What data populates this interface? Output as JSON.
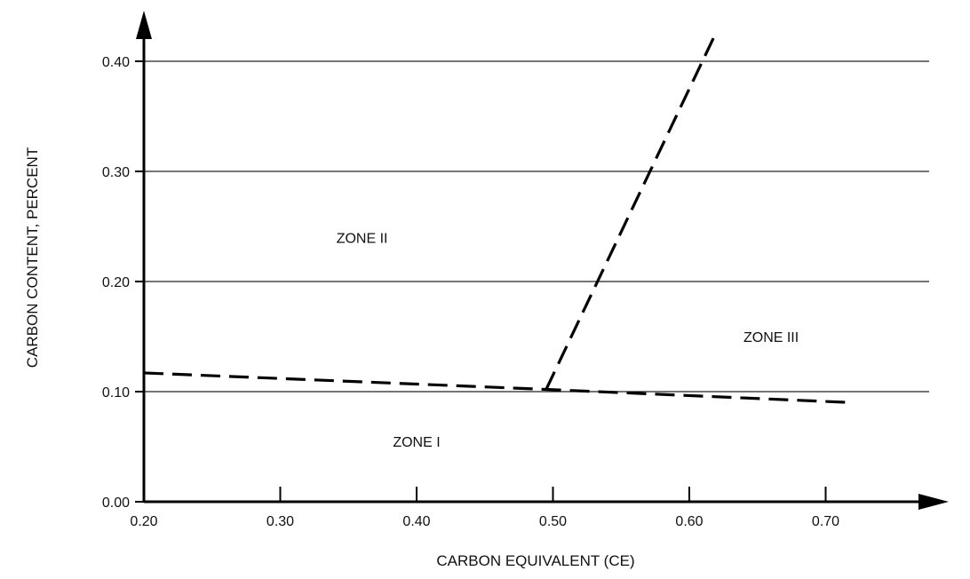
{
  "chart_data": {
    "type": "line",
    "title": "",
    "xlabel": "CARBON EQUIVALENT (CE)",
    "ylabel": "CARBON CONTENT, PERCENT",
    "xlim": [
      0.2,
      0.77
    ],
    "ylim": [
      0.0,
      0.42
    ],
    "x_ticks": [
      0.2,
      0.3,
      0.4,
      0.5,
      0.6,
      0.7
    ],
    "x_tick_labels": [
      "0.20",
      "0.30",
      "0.40",
      "0.50",
      "0.60",
      "0.70"
    ],
    "y_ticks": [
      0.0,
      0.1,
      0.2,
      0.3,
      0.4
    ],
    "y_tick_labels": [
      "0.00",
      "0.10",
      "0.20",
      "0.30",
      "0.40"
    ],
    "grid": "horizontal",
    "series": [
      {
        "style": "dashed",
        "x": [
          0.2,
          0.495,
          0.72
        ],
        "y": [
          0.117,
          0.102,
          0.09
        ]
      },
      {
        "style": "dashed",
        "x": [
          0.495,
          0.62
        ],
        "y": [
          0.102,
          0.427
        ]
      }
    ],
    "annotations": [
      {
        "text": "ZONE II",
        "x": 0.36,
        "y": 0.24
      },
      {
        "text": "ZONE III",
        "x": 0.66,
        "y": 0.15
      },
      {
        "text": "ZONE I",
        "x": 0.4,
        "y": 0.055
      }
    ]
  }
}
